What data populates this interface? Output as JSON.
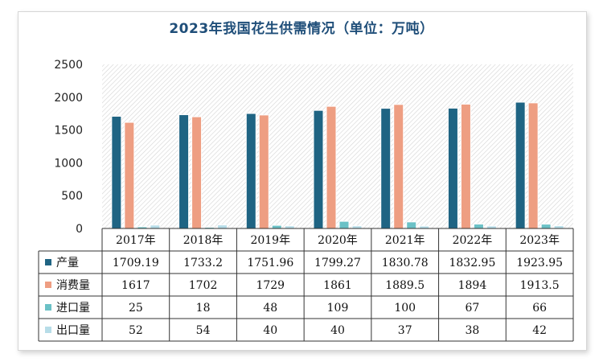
{
  "chart_data": {
    "type": "bar",
    "title": "2023年我国花生供需情况（单位：万吨）",
    "categories": [
      "2017年",
      "2018年",
      "2019年",
      "2020年",
      "2021年",
      "2022年",
      "2023年"
    ],
    "series": [
      {
        "name": "产量",
        "color": "#1f6483",
        "values": [
          1709.19,
          1733.2,
          1751.96,
          1799.27,
          1830.78,
          1832.95,
          1923.95
        ],
        "labels": [
          "1709.19",
          "1733.2",
          "1751.96",
          "1799.27",
          "1830.78",
          "1832.95",
          "1923.95"
        ]
      },
      {
        "name": "消费量",
        "color": "#ee9e82",
        "values": [
          1617,
          1702,
          1729,
          1861,
          1889.5,
          1894,
          1913.5
        ],
        "labels": [
          "1617",
          "1702",
          "1729",
          "1861",
          "1889.5",
          "1894",
          "1913.5"
        ]
      },
      {
        "name": "进口量",
        "color": "#6bc1c6",
        "values": [
          25,
          18,
          48,
          109,
          100,
          67,
          66
        ],
        "labels": [
          "25",
          "18",
          "48",
          "109",
          "100",
          "67",
          "66"
        ]
      },
      {
        "name": "出口量",
        "color": "#b7dde8",
        "values": [
          52,
          54,
          40,
          40,
          37,
          38,
          42
        ],
        "labels": [
          "52",
          "54",
          "40",
          "40",
          "37",
          "38",
          "42"
        ]
      }
    ],
    "ylim": [
      0,
      2500
    ],
    "yticks": [
      "0",
      "500",
      "1000",
      "1500",
      "2000",
      "2500"
    ],
    "grid": false,
    "legend": "data-table"
  }
}
